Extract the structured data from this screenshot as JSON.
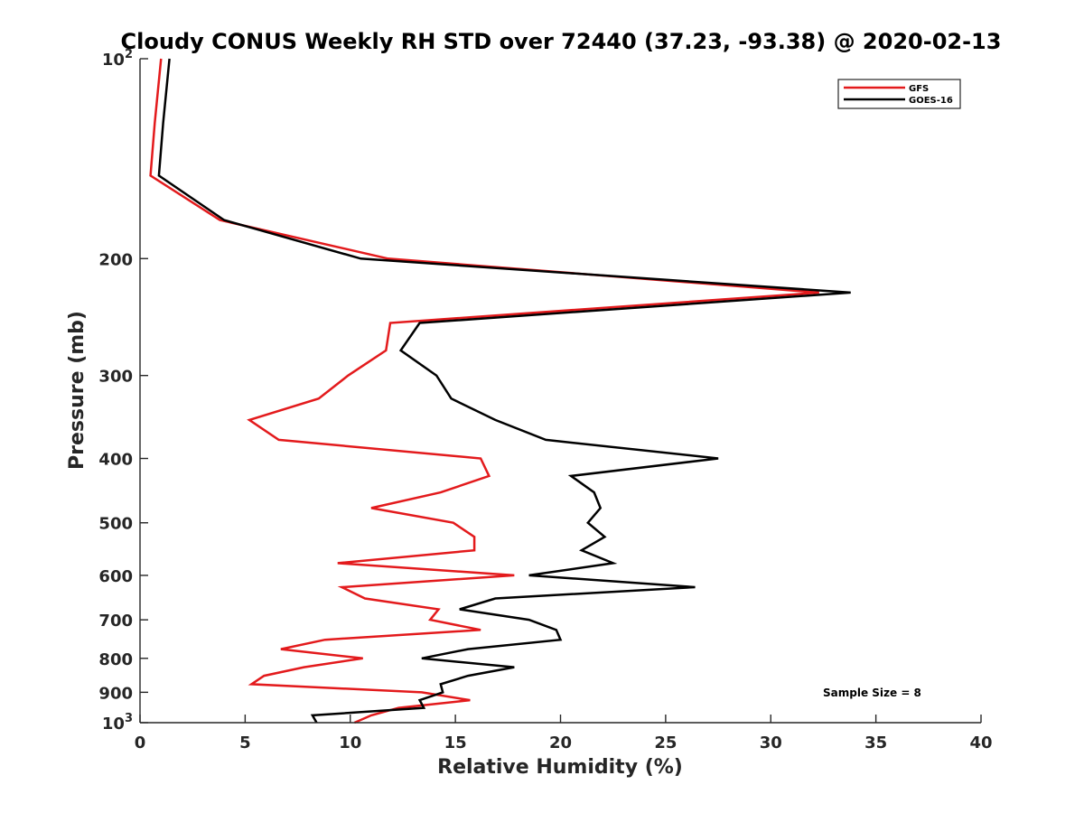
{
  "chart_data": {
    "type": "line",
    "title": "Cloudy CONUS Weekly RH STD over 72440 (37.23, -93.38) @ 2020-02-13",
    "xlabel": "Relative Humidity (%)",
    "ylabel": "Pressure (mb)",
    "xlim": [
      0,
      40
    ],
    "ylim": [
      100,
      1000
    ],
    "y_scale": "log",
    "y_reversed": true,
    "grid": false,
    "legend_position": "top-right",
    "x_ticks": [
      "0",
      "5",
      "10",
      "15",
      "20",
      "25",
      "30",
      "35",
      "40"
    ],
    "y_ticks": [
      {
        "value": 100,
        "base": "10",
        "exp": "2"
      },
      {
        "value": 200,
        "label": "200"
      },
      {
        "value": 300,
        "label": "300"
      },
      {
        "value": 400,
        "label": "400"
      },
      {
        "value": 500,
        "label": "500"
      },
      {
        "value": 600,
        "label": "600"
      },
      {
        "value": 700,
        "label": "700"
      },
      {
        "value": 800,
        "label": "800"
      },
      {
        "value": 900,
        "label": "900"
      },
      {
        "value": 1000,
        "base": "10",
        "exp": "3"
      }
    ],
    "series": [
      {
        "name": "GFS",
        "color": "#e31a1c",
        "points": [
          [
            1.0,
            100
          ],
          [
            0.7,
            125
          ],
          [
            0.5,
            150
          ],
          [
            3.8,
            175
          ],
          [
            11.8,
            200
          ],
          [
            32.3,
            225
          ],
          [
            11.9,
            250
          ],
          [
            11.7,
            275
          ],
          [
            9.9,
            300
          ],
          [
            8.5,
            325
          ],
          [
            5.2,
            350
          ],
          [
            6.6,
            375
          ],
          [
            16.2,
            400
          ],
          [
            16.6,
            425
          ],
          [
            14.3,
            450
          ],
          [
            11.0,
            475
          ],
          [
            14.9,
            500
          ],
          [
            15.9,
            525
          ],
          [
            15.9,
            550
          ],
          [
            9.4,
            575
          ],
          [
            17.8,
            600
          ],
          [
            9.6,
            625
          ],
          [
            10.7,
            650
          ],
          [
            14.2,
            675
          ],
          [
            13.8,
            700
          ],
          [
            16.2,
            725
          ],
          [
            8.8,
            750
          ],
          [
            6.7,
            775
          ],
          [
            10.6,
            800
          ],
          [
            7.8,
            825
          ],
          [
            5.9,
            850
          ],
          [
            5.3,
            875
          ],
          [
            13.4,
            900
          ],
          [
            15.7,
            925
          ],
          [
            12.3,
            950
          ],
          [
            11.0,
            975
          ],
          [
            10.2,
            1000
          ]
        ]
      },
      {
        "name": "GOES-16",
        "color": "#000000",
        "points": [
          [
            1.4,
            100
          ],
          [
            1.1,
            125
          ],
          [
            0.9,
            150
          ],
          [
            4.0,
            175
          ],
          [
            10.5,
            200
          ],
          [
            33.8,
            225
          ],
          [
            13.3,
            250
          ],
          [
            12.4,
            275
          ],
          [
            14.1,
            300
          ],
          [
            14.8,
            325
          ],
          [
            16.9,
            350
          ],
          [
            19.3,
            375
          ],
          [
            27.5,
            400
          ],
          [
            20.5,
            425
          ],
          [
            21.6,
            450
          ],
          [
            21.9,
            475
          ],
          [
            21.3,
            500
          ],
          [
            22.1,
            525
          ],
          [
            21.0,
            550
          ],
          [
            22.5,
            575
          ],
          [
            18.5,
            600
          ],
          [
            26.4,
            625
          ],
          [
            16.9,
            650
          ],
          [
            15.2,
            675
          ],
          [
            18.5,
            700
          ],
          [
            19.8,
            725
          ],
          [
            20.0,
            750
          ],
          [
            15.6,
            775
          ],
          [
            13.4,
            800
          ],
          [
            17.8,
            825
          ],
          [
            15.6,
            850
          ],
          [
            14.3,
            875
          ],
          [
            14.4,
            900
          ],
          [
            13.3,
            925
          ],
          [
            13.5,
            950
          ],
          [
            8.2,
            975
          ],
          [
            8.4,
            1000
          ]
        ]
      }
    ],
    "annotations": [
      {
        "text": "Sample Size = 8"
      }
    ]
  }
}
